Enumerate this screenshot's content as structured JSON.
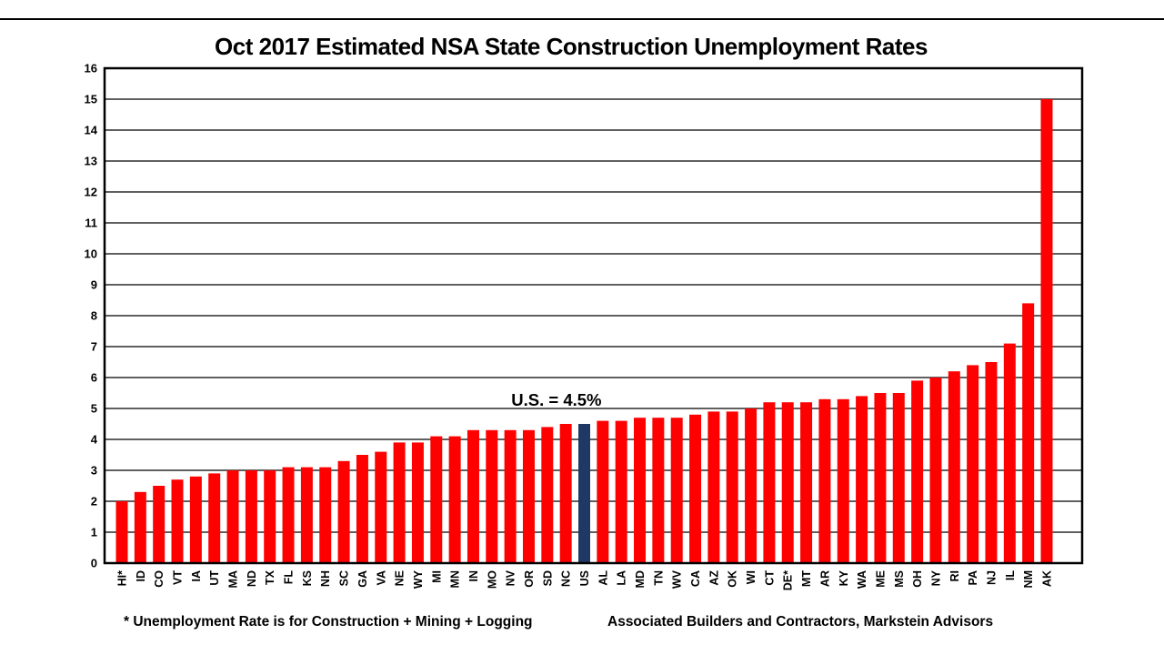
{
  "slide": {
    "title": "Oct 2017 Estimated NSA State Construction Unemployment Rates",
    "footnote_left": "* Unemployment Rate is for Construction + Mining + Logging",
    "footnote_right": "Associated Builders and Contractors, Markstein Advisors"
  },
  "chart_data": {
    "type": "bar",
    "title": "Oct 2017 Estimated NSA State Construction Unemployment Rates",
    "categories": [
      "HI*",
      "ID",
      "CO",
      "VT",
      "IA",
      "UT",
      "MA",
      "ND",
      "TX",
      "FL",
      "KS",
      "NH",
      "SC",
      "GA",
      "VA",
      "NE",
      "WY",
      "MI",
      "MN",
      "IN",
      "MO",
      "NV",
      "OR",
      "SD",
      "NC",
      "US",
      "AL",
      "LA",
      "MD",
      "TN",
      "WV",
      "CA",
      "AZ",
      "OK",
      "WI",
      "CT",
      "DE*",
      "MT",
      "AR",
      "KY",
      "WA",
      "ME",
      "MS",
      "OH",
      "NY",
      "RI",
      "PA",
      "NJ",
      "IL",
      "NM",
      "AK"
    ],
    "values": [
      2.0,
      2.3,
      2.5,
      2.7,
      2.8,
      2.9,
      3.0,
      3.0,
      3.0,
      3.1,
      3.1,
      3.1,
      3.3,
      3.5,
      3.6,
      3.9,
      3.9,
      4.1,
      4.1,
      4.3,
      4.3,
      4.3,
      4.3,
      4.4,
      4.5,
      4.5,
      4.6,
      4.6,
      4.7,
      4.7,
      4.7,
      4.8,
      4.9,
      4.9,
      5.0,
      5.2,
      5.2,
      5.2,
      5.3,
      5.3,
      5.4,
      5.5,
      5.5,
      5.9,
      6.0,
      6.2,
      6.4,
      6.5,
      7.1,
      8.4,
      15.0
    ],
    "annotation": "U.S. = 4.5%",
    "highlight_category": "US",
    "highlight_color": "#1F3864",
    "bar_color": "#FF0000",
    "axis_color": "#000000",
    "ylim": [
      0,
      16
    ],
    "ytick_step": 1,
    "grid": true,
    "legend": "none",
    "xlabel": "",
    "ylabel": ""
  }
}
